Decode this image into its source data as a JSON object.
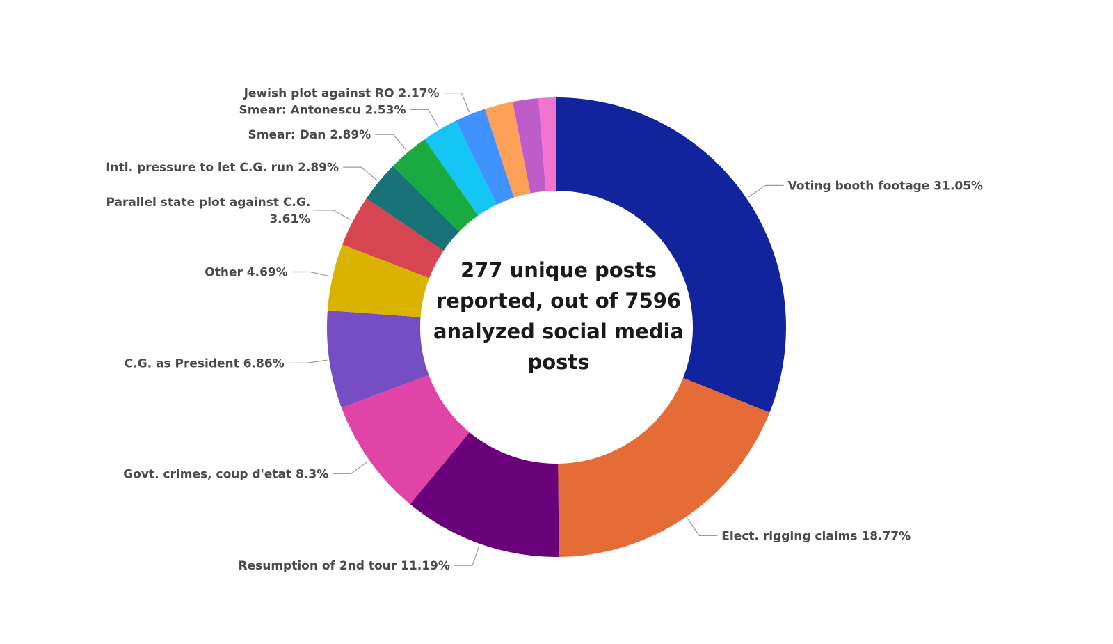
{
  "chart_data": {
    "type": "pie",
    "title": "",
    "center_text": "277 unique posts reported, out of 7596 analyzed social media posts",
    "legend": "none",
    "slices": [
      {
        "name": "Voting booth footage",
        "value": 31.05,
        "label": "Voting booth footage 31.05%",
        "color": "#12239E"
      },
      {
        "name": "Elect. rigging claims",
        "value": 18.77,
        "label": "Elect. rigging claims 18.77%",
        "color": "#E66C37"
      },
      {
        "name": "Resumption of 2nd tour",
        "value": 11.19,
        "label": "Resumption of 2nd tour 11.19%",
        "color": "#6B007B"
      },
      {
        "name": "Govt. crimes, coup d'etat",
        "value": 8.3,
        "label": "Govt. crimes, coup d'etat 8.3%",
        "color": "#E044A7"
      },
      {
        "name": "C.G. as President",
        "value": 6.86,
        "label": "C.G. as President 6.86%",
        "color": "#744EC2"
      },
      {
        "name": "Other",
        "value": 4.69,
        "label": "Other 4.69%",
        "color": "#D9B300"
      },
      {
        "name": "Parallel state plot against C.G.",
        "value": 3.61,
        "label": "Parallel state plot against C.G. 3.61%",
        "label_lines": [
          "Parallel state plot against C.G.",
          "3.61%"
        ],
        "color": "#D64550"
      },
      {
        "name": "Intl. pressure to let C.G. run",
        "value": 2.89,
        "label": "Intl. pressure to let C.G. run 2.89%",
        "color": "#197278"
      },
      {
        "name": "Smear: Dan",
        "value": 2.89,
        "label": "Smear: Dan 2.89%",
        "color": "#1AAB40"
      },
      {
        "name": "Smear: Antonescu",
        "value": 2.53,
        "label": "Smear: Antonescu 2.53%",
        "color": "#15C6F4"
      },
      {
        "name": "Jewish plot against RO",
        "value": 2.17,
        "label": "Jewish plot against RO 2.17%",
        "color": "#4092FF"
      },
      {
        "name": "",
        "value": 1.99,
        "label": "",
        "color": "#FFA058"
      },
      {
        "name": "",
        "value": 1.81,
        "label": "",
        "color": "#BE5DC9"
      },
      {
        "name": "",
        "value": 1.25,
        "label": "",
        "color": "#F472D0"
      }
    ]
  }
}
